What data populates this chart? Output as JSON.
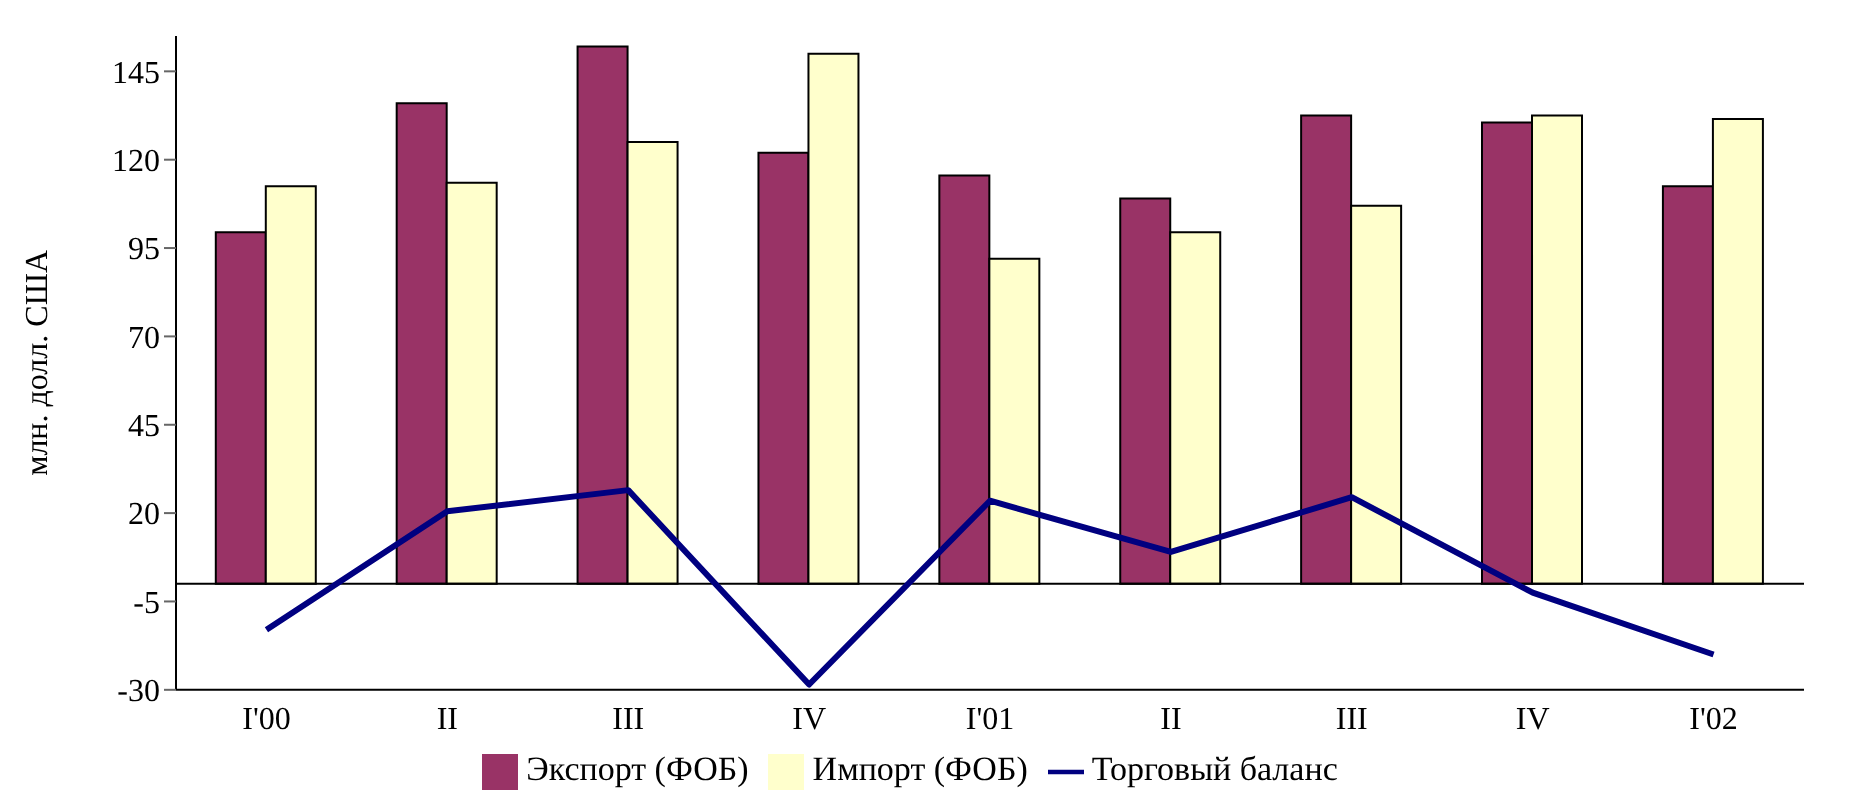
{
  "chart_data": {
    "type": "bar",
    "ylabel": "млн. долл. США",
    "categories": [
      "I'00",
      "II",
      "III",
      "IV",
      "I'01",
      "II",
      "III",
      "IV",
      "I'02"
    ],
    "series": [
      {
        "name": "Экспорт (ФОБ)",
        "color": "#993366",
        "values": [
          99.5,
          136,
          152,
          122,
          115.5,
          109,
          132.5,
          130.5,
          112.5
        ]
      },
      {
        "name": "Импорт (ФОБ)",
        "color": "#ffffcc",
        "values": [
          112.5,
          113.5,
          125,
          150,
          92,
          99.5,
          107,
          132.5,
          131.5
        ]
      },
      {
        "name": "Торговый баланс",
        "type": "line",
        "color": "#000080",
        "values": [
          -13,
          20.5,
          26.5,
          -28.5,
          23.5,
          9,
          24.5,
          -2.5,
          -20
        ]
      }
    ],
    "ylim": [
      -30,
      155
    ],
    "yticks": [
      -30,
      -5,
      20,
      45,
      70,
      95,
      120,
      145
    ],
    "grid": false,
    "legend": "bottom",
    "marker": "none"
  }
}
